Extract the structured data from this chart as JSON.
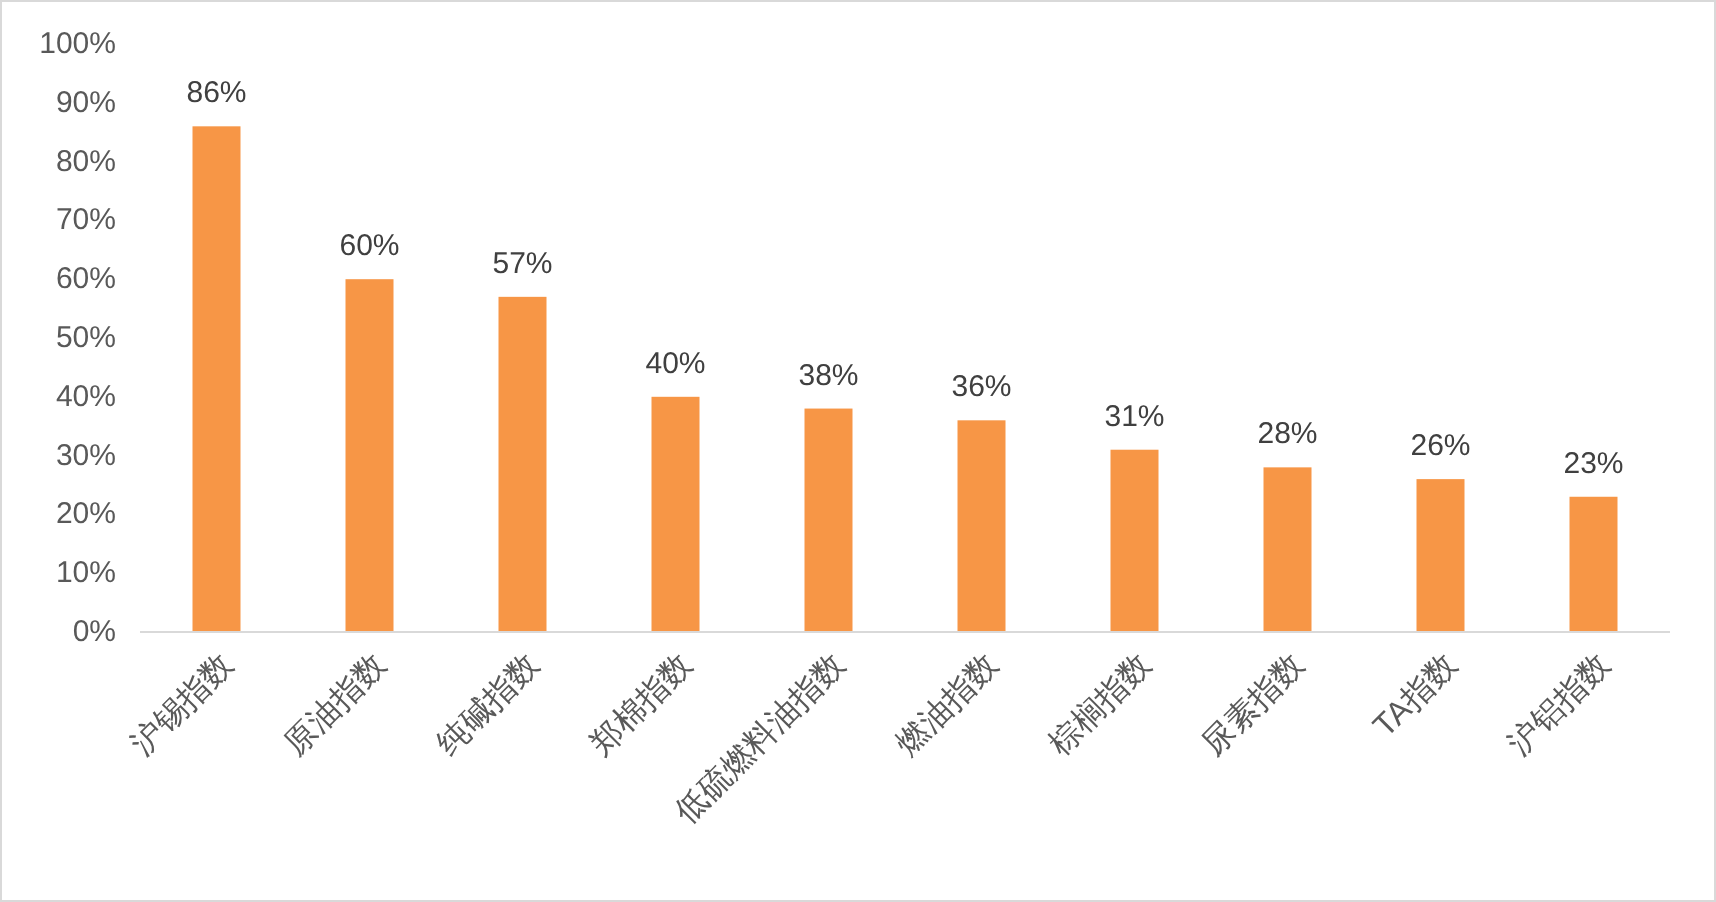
{
  "chart_data": {
    "type": "bar",
    "categories": [
      "沪锡指数",
      "原油指数",
      "纯碱指数",
      "郑棉指数",
      "低硫燃料油指数",
      "燃油指数",
      "棕榈指数",
      "尿素指数",
      "TA指数",
      "沪铝指数"
    ],
    "values": [
      86,
      60,
      57,
      40,
      38,
      36,
      31,
      28,
      26,
      23
    ],
    "color": "#f79646",
    "data_labels": true,
    "value_labels": [
      "86%",
      "60%",
      "57%",
      "40%",
      "38%",
      "36%",
      "31%",
      "28%",
      "26%",
      "23%"
    ],
    "ylim": [
      0,
      100
    ],
    "yticks": [
      {
        "value": 0,
        "label": "0%"
      },
      {
        "value": 10,
        "label": "10%"
      },
      {
        "value": 20,
        "label": "20%"
      },
      {
        "value": 30,
        "label": "30%"
      },
      {
        "value": 40,
        "label": "40%"
      },
      {
        "value": 50,
        "label": "50%"
      },
      {
        "value": 60,
        "label": "60%"
      },
      {
        "value": 70,
        "label": "70%"
      },
      {
        "value": 80,
        "label": "80%"
      },
      {
        "value": 90,
        "label": "90%"
      },
      {
        "value": 100,
        "label": "100%"
      }
    ],
    "orientation": "vertical"
  }
}
